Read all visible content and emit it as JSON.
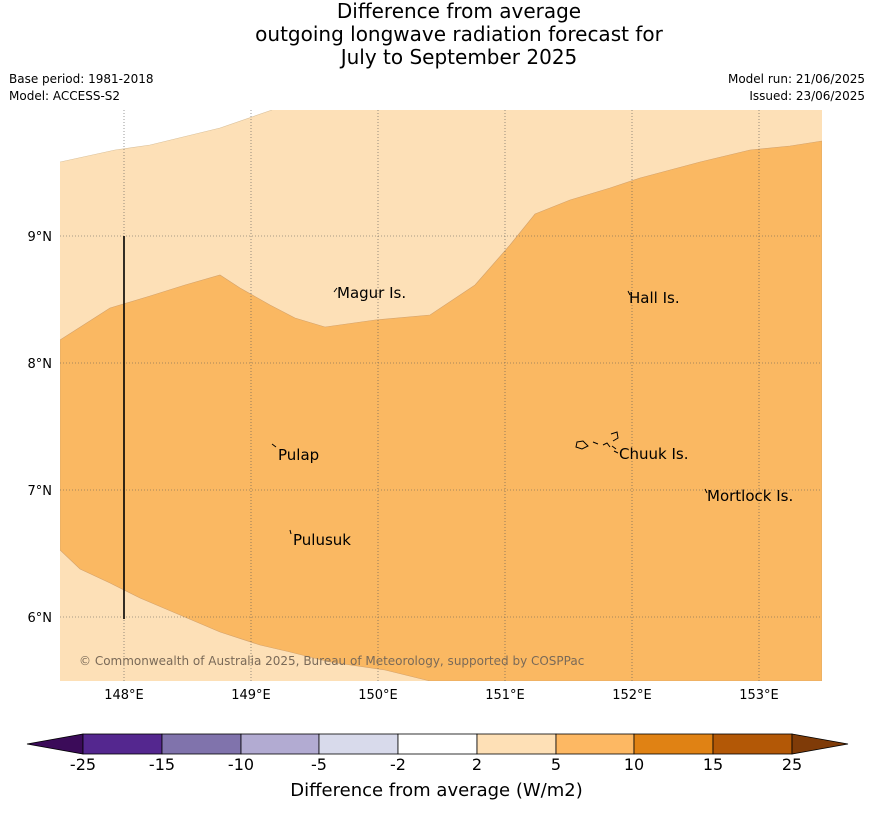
{
  "title": {
    "line1": "Difference from average",
    "line2": "outgoing longwave radiation forecast for",
    "line3": "July to September 2025"
  },
  "info": {
    "base_period": "Base period: 1981-2018",
    "model": "Model: ACCESS-S2",
    "model_run": "Model run: 21/06/2025",
    "issued": "Issued: 23/06/2025"
  },
  "map": {
    "lon_labels": [
      "148°E",
      "149°E",
      "150°E",
      "151°E",
      "152°E",
      "153°E"
    ],
    "lat_labels": [
      "9°N",
      "8°N",
      "7°N",
      "6°N"
    ],
    "places": [
      {
        "name": "Magur Is."
      },
      {
        "name": "Hall Is."
      },
      {
        "name": "Pulap"
      },
      {
        "name": "Chuuk Is."
      },
      {
        "name": "Mortlock Is."
      },
      {
        "name": "Pulusuk"
      }
    ],
    "copyright": "© Commonwealth of Australia 2025, Bureau of Meteorology, supported by COSPPac",
    "colors": {
      "light_orange_2_to_5": "#fde0b7",
      "orange_5_to_10": "#fab862"
    }
  },
  "colorbar": {
    "title": "Difference from average (W/m2)",
    "ticks": [
      "-25",
      "-15",
      "-10",
      "-5",
      "-2",
      "2",
      "5",
      "10",
      "15",
      "25"
    ],
    "colors": {
      "below_min": "#3b0b59",
      "c1": "#54278f",
      "c2": "#8073ac",
      "c3": "#b2abd2",
      "c4": "#d8daeb",
      "c5": "#ffffff",
      "c6": "#fee0b6",
      "c7": "#fdb863",
      "c8": "#e08214",
      "c9": "#b35806",
      "above_max": "#7f3b08"
    }
  }
}
